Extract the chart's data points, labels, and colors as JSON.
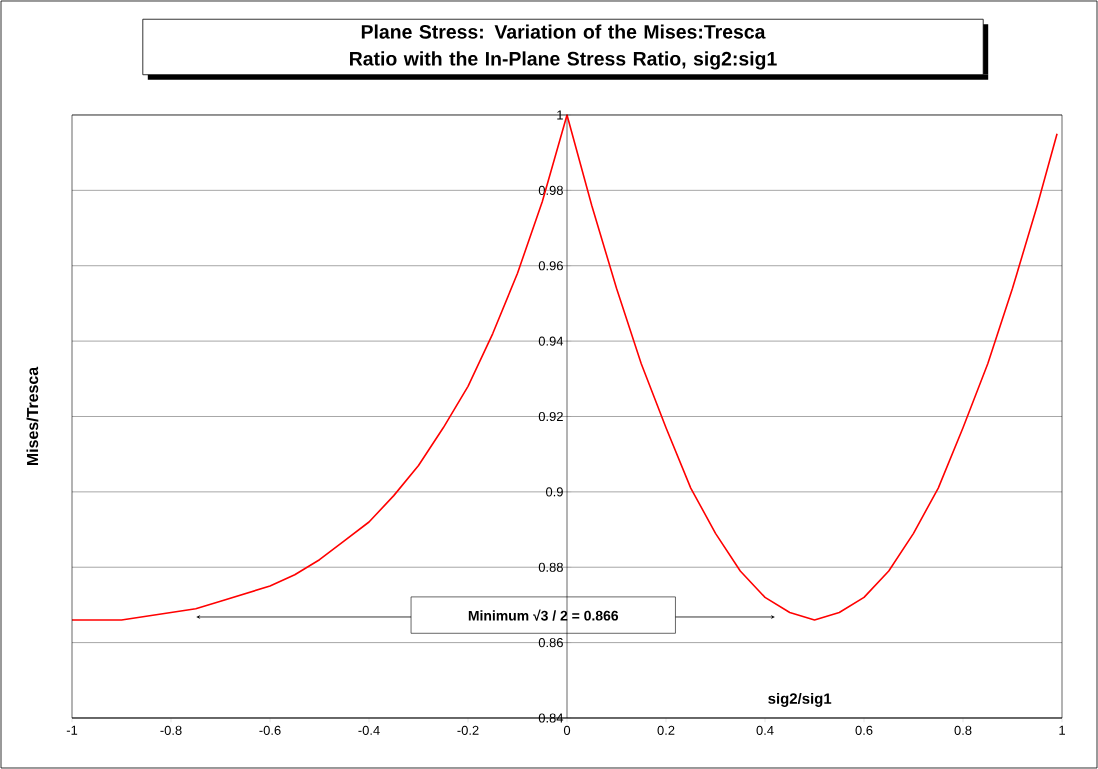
{
  "chart_data": {
    "type": "line",
    "title": "Plane Stress: Variation of the Mises:Tresca Ratio with the In-Plane Stress Ratio, sig2:sig1",
    "xlabel": "sig2/sig1",
    "ylabel": "Mises/Tresca",
    "x": [
      -1,
      -0.95,
      -0.9,
      -0.85,
      -0.8,
      -0.75,
      -0.7,
      -0.65,
      -0.6,
      -0.55,
      -0.5,
      -0.45,
      -0.4,
      -0.35,
      -0.3,
      -0.25,
      -0.2,
      -0.15,
      -0.1,
      -0.05,
      0,
      0.05,
      0.1,
      0.15,
      0.2,
      0.25,
      0.3,
      0.35,
      0.4,
      0.45,
      0.5,
      0.55,
      0.6,
      0.65,
      0.7,
      0.75,
      0.8,
      0.85,
      0.9,
      0.95,
      0.99
    ],
    "series": [
      {
        "color": "#ff0000",
        "values": [
          0.866,
          0.866,
          0.866,
          0.867,
          0.868,
          0.869,
          0.871,
          0.873,
          0.875,
          0.878,
          0.882,
          0.887,
          0.892,
          0.899,
          0.907,
          0.917,
          0.928,
          0.942,
          0.958,
          0.977,
          1.0,
          0.976,
          0.954,
          0.934,
          0.917,
          0.901,
          0.889,
          0.879,
          0.872,
          0.868,
          0.866,
          0.868,
          0.872,
          0.879,
          0.889,
          0.901,
          0.917,
          0.934,
          0.954,
          0.976,
          0.995
        ]
      }
    ],
    "xlim": [
      -1,
      1
    ],
    "xticks": [
      -1,
      -0.8,
      -0.6,
      -0.4,
      -0.2,
      0,
      0.2,
      0.4,
      0.6,
      0.8,
      1
    ],
    "ylim": [
      0.84,
      1
    ],
    "yticks": [
      0.84,
      0.86,
      0.88,
      0.9,
      0.92,
      0.94,
      0.96,
      0.98,
      1
    ],
    "grid": "y",
    "marker": "none",
    "line_style": "solid",
    "annotations": [
      "Minimum √3 / 2 = 0.866"
    ]
  }
}
